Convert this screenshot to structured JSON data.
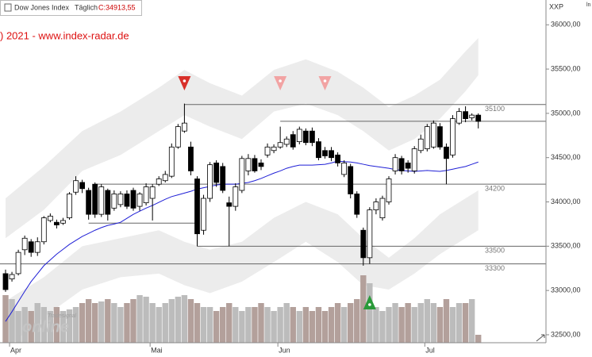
{
  "chart_data": {
    "type": "candlestick",
    "title": "Dow Jones Index",
    "interval": "Täglich",
    "last": "C:34913,55",
    "copyright": ") 2021 - www.index-radar.de",
    "currency": "XXP",
    "corner": "ln",
    "watermark": [
      "Tradesignal",
      "online"
    ],
    "categories": [
      null,
      "Apr",
      null,
      null,
      null,
      null,
      null,
      null,
      null,
      null,
      null,
      null,
      null,
      null,
      null,
      null,
      null,
      null,
      null,
      null,
      null,
      null,
      null,
      "Mai",
      null,
      null,
      null,
      null,
      null,
      null,
      null,
      null,
      null,
      null,
      null,
      null,
      null,
      null,
      null,
      null,
      null,
      null,
      null,
      "Jun",
      null,
      null,
      null,
      null,
      null,
      null,
      null,
      null,
      null,
      null,
      null,
      null,
      null,
      null,
      null,
      null,
      null,
      null,
      null,
      null,
      null,
      null,
      "Jul",
      null,
      null,
      null,
      null,
      null,
      null,
      null,
      null
    ],
    "open": [
      33190,
      33130,
      33190,
      33460,
      33550,
      33430,
      33550,
      33790,
      33770,
      33760,
      33820,
      34110,
      34220,
      34130,
      34200,
      33860,
      34130,
      33930,
      33970,
      34090,
      34130,
      33950,
      33990,
      34040,
      34200,
      34240,
      34290,
      34620,
      34800,
      34620,
      34260,
      33680,
      34040,
      34440,
      34400,
      33990,
      33950,
      34130,
      34350,
      34490,
      34440,
      34530,
      34580,
      34620,
      34650,
      34760,
      34680,
      34800,
      34800,
      34680,
      34580,
      34580,
      34530,
      34310,
      34400,
      34090,
      33680,
      33370,
      33910,
      33820,
      34000,
      34350,
      34490,
      34440,
      34350,
      34580,
      34600,
      34620,
      34850,
      34620,
      34530,
      34890,
      35020,
      34950,
      34980
    ],
    "high": [
      33235,
      33210,
      33460,
      33620,
      33580,
      33600,
      33840,
      33870,
      33800,
      33820,
      34110,
      34290,
      34250,
      34160,
      34220,
      34200,
      34150,
      34130,
      34120,
      34130,
      34160,
      34110,
      34210,
      34200,
      34290,
      34350,
      34660,
      34880,
      35110,
      34680,
      34290,
      34080,
      34450,
      34470,
      34440,
      34060,
      34210,
      34520,
      34540,
      34530,
      34480,
      34660,
      34650,
      34850,
      34740,
      34800,
      34850,
      34830,
      34840,
      34720,
      34620,
      34620,
      34560,
      34470,
      34430,
      34120,
      33710,
      33940,
      34040,
      34070,
      34290,
      34540,
      34520,
      34470,
      34630,
      34760,
      34880,
      34920,
      34890,
      34660,
      34980,
      35060,
      35080,
      35000,
      35000
    ],
    "low": [
      32985,
      33100,
      33170,
      33400,
      33380,
      33390,
      33520,
      33770,
      33700,
      33740,
      33800,
      34080,
      34100,
      33800,
      33820,
      33830,
      33790,
      33900,
      33940,
      33920,
      33900,
      33900,
      33960,
      33790,
      34180,
      34220,
      34270,
      34600,
      34780,
      34300,
      33500,
      33630,
      34000,
      34170,
      34100,
      33500,
      33900,
      34100,
      34300,
      34330,
      34360,
      34500,
      34550,
      34600,
      34620,
      34590,
      34650,
      34640,
      34630,
      34470,
      34490,
      34460,
      34400,
      34280,
      34040,
      33820,
      33280,
      33300,
      33860,
      33790,
      33970,
      34310,
      34310,
      34330,
      34320,
      34550,
      34570,
      34600,
      34590,
      34200,
      34500,
      34870,
      34900,
      34920,
      34830
    ],
    "close": [
      33010,
      33180,
      33430,
      33590,
      33430,
      33550,
      33820,
      33840,
      33740,
      33790,
      34090,
      34240,
      34150,
      33860,
      33860,
      34170,
      33860,
      34090,
      34090,
      33950,
      33930,
      34090,
      34170,
      34170,
      34260,
      34310,
      34620,
      34850,
      34890,
      34350,
      33640,
      34040,
      34420,
      34220,
      34130,
      33950,
      34170,
      34490,
      34490,
      34350,
      34400,
      34620,
      34620,
      34670,
      34710,
      34620,
      34820,
      34670,
      34670,
      34500,
      34520,
      34500,
      34440,
      34440,
      34090,
      33860,
      33370,
      33910,
      34000,
      34040,
      34260,
      34500,
      34350,
      34380,
      34600,
      34710,
      34850,
      34890,
      34620,
      34490,
      34940,
      35020,
      34940,
      34980,
      34910
    ],
    "volume": [
      60,
      55,
      40,
      45,
      40,
      50,
      45,
      40,
      45,
      40,
      42,
      45,
      50,
      55,
      50,
      52,
      55,
      50,
      45,
      50,
      55,
      60,
      58,
      50,
      45,
      50,
      55,
      58,
      60,
      55,
      50,
      45,
      45,
      40,
      45,
      50,
      45,
      40,
      45,
      45,
      50,
      45,
      40,
      45,
      50,
      45,
      40,
      45,
      40,
      45,
      40,
      45,
      50,
      45,
      50,
      55,
      85,
      75,
      45,
      40,
      45,
      50,
      45,
      50,
      45,
      50,
      55,
      50,
      45,
      55,
      45,
      50,
      50,
      55,
      10
    ],
    "up_color": "#ffffff",
    "down_color": "#000000",
    "volume_colors": [
      "#bcbcbc",
      "#b3a09b"
    ],
    "ma": {
      "color": "#1f1fd6",
      "values": [
        32650,
        32760,
        32875,
        32990,
        33100,
        33190,
        33280,
        33345,
        33410,
        33465,
        33520,
        33565,
        33610,
        33645,
        33680,
        33710,
        33735,
        33750,
        33770,
        33815,
        33860,
        33895,
        33930,
        33960,
        33995,
        34030,
        34060,
        34080,
        34100,
        34120,
        34145,
        34160,
        34175,
        34190,
        34200,
        34200,
        34200,
        34210,
        34220,
        34240,
        34265,
        34295,
        34325,
        34350,
        34380,
        34400,
        34415,
        34415,
        34415,
        34420,
        34425,
        34440,
        34460,
        34455,
        34450,
        34440,
        34425,
        34410,
        34400,
        34390,
        34380,
        34365,
        34355,
        34350,
        34345,
        34350,
        34355,
        34350,
        34345,
        34355,
        34370,
        34385,
        34400,
        34425,
        34450
      ]
    },
    "bands": {
      "color": "#ececec",
      "x": [
        0,
        6,
        12,
        18,
        24,
        28,
        32,
        37,
        42,
        47,
        52,
        56,
        60,
        64,
        68,
        72,
        74
      ],
      "upper_outer": [
        34040,
        34400,
        34800,
        35020,
        35290,
        35490,
        35340,
        35200,
        35490,
        35610,
        35470,
        35290,
        35070,
        35200,
        35380,
        35700,
        35850
      ],
      "upper_inner": [
        33590,
        33910,
        34350,
        34530,
        34800,
        34980,
        34850,
        34710,
        35020,
        35110,
        34980,
        34800,
        34580,
        34710,
        34940,
        35250,
        35430
      ],
      "lower_inner": [
        32880,
        33150,
        33500,
        33590,
        33680,
        33550,
        33460,
        33550,
        33820,
        34000,
        33860,
        33590,
        33370,
        33590,
        33860,
        34040,
        34130
      ],
      "lower_outer": [
        32340,
        32700,
        33010,
        33150,
        33190,
        33060,
        32970,
        33100,
        33320,
        33550,
        33320,
        33060,
        33010,
        33190,
        33410,
        33590,
        33680
      ]
    },
    "levels": [
      {
        "value": 35100,
        "start": 28
      },
      {
        "value": 34200,
        "start": 14
      },
      {
        "value": 33500,
        "start": 30
      },
      {
        "value": 33300,
        "start": 0
      }
    ],
    "guides": [
      {
        "value": 34910,
        "start": 43,
        "end": 74
      },
      {
        "value": 33760,
        "start": 13,
        "end": 30
      }
    ],
    "signals": [
      {
        "at": 28,
        "dir": "down",
        "color": "#d8302a"
      },
      {
        "at": 43,
        "dir": "down",
        "color": "#f2a3a3"
      },
      {
        "at": 50,
        "dir": "down",
        "color": "#f2a3a3"
      },
      {
        "at": 57,
        "dir": "up",
        "color": "#2a9a3a"
      }
    ],
    "ylim": [
      32410,
      36280
    ],
    "yticks": [
      {
        "value": 36000,
        "label": "36000,00"
      },
      {
        "value": 35500,
        "label": "35500,00"
      },
      {
        "value": 35000,
        "label": "35000,00"
      },
      {
        "value": 34500,
        "label": "34500,00"
      },
      {
        "value": 34000,
        "label": "34000,00"
      },
      {
        "value": 33500,
        "label": "33500,00"
      },
      {
        "value": 33000,
        "label": "33000,00"
      },
      {
        "value": 32500,
        "label": "32500,00"
      }
    ]
  }
}
